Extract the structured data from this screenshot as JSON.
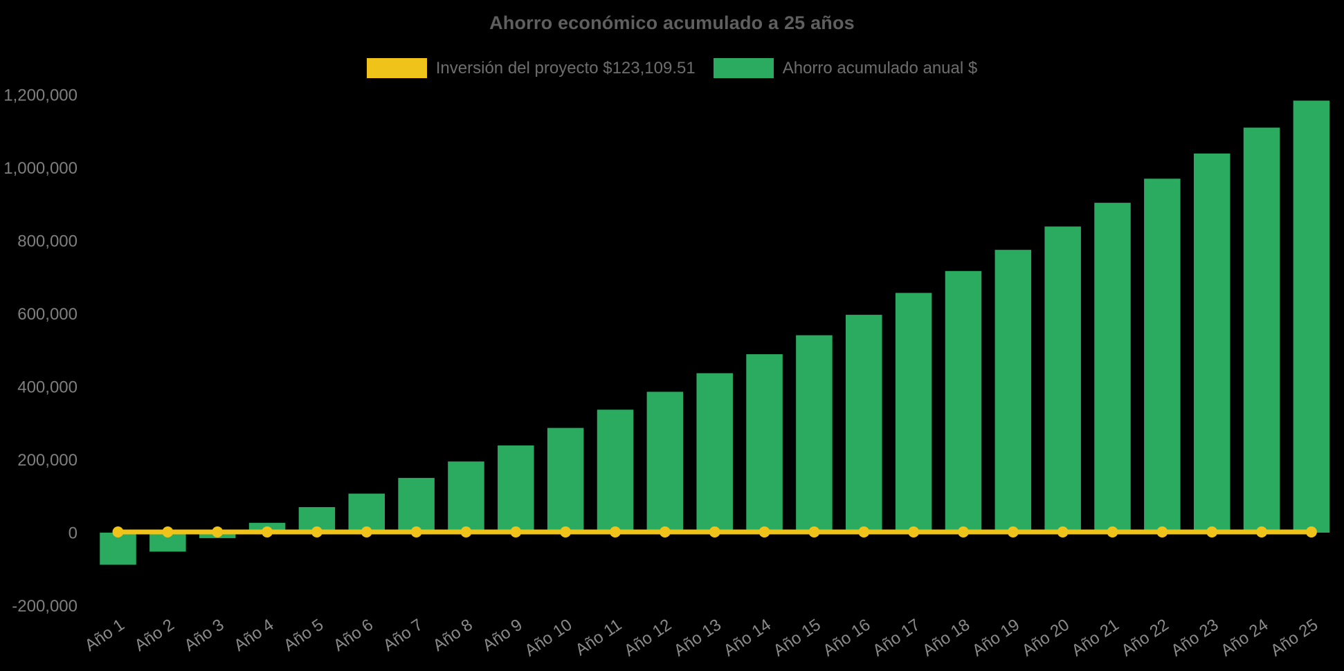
{
  "chart_data": {
    "type": "bar",
    "title": "Ahorro económico acumulado a 25 años",
    "xlabel": "",
    "ylabel": "",
    "categories": [
      "Año 1",
      "Año 2",
      "Año 3",
      "Año 4",
      "Año 5",
      "Año 6",
      "Año 7",
      "Año 8",
      "Año 9",
      "Año 10",
      "Año 11",
      "Año 12",
      "Año 13",
      "Año 14",
      "Año 15",
      "Año 16",
      "Año 17",
      "Año 18",
      "Año 19",
      "Año 20",
      "Año 21",
      "Año 22",
      "Año 23",
      "Año 24",
      "Año 25"
    ],
    "series": [
      {
        "name": "Inversión del proyecto $123,109.51",
        "type": "line",
        "color": "#efc319",
        "values": [
          0,
          0,
          0,
          0,
          0,
          0,
          0,
          0,
          0,
          0,
          0,
          0,
          0,
          0,
          0,
          0,
          0,
          0,
          0,
          0,
          0,
          0,
          0,
          0,
          0
        ]
      },
      {
        "name": "Ahorro acumulado anual $",
        "type": "bar",
        "color": "#2aab60",
        "values": [
          -88000,
          -52000,
          -15000,
          27000,
          70000,
          107000,
          150000,
          195000,
          239000,
          287000,
          337000,
          386000,
          437000,
          489000,
          541000,
          597000,
          657000,
          717000,
          775000,
          839000,
          904000,
          970000,
          1039000,
          1110000,
          1184000
        ]
      }
    ],
    "ylim": [
      -200000,
      1200000
    ],
    "ytick_step": 200000,
    "ytick_labels": [
      "-200,000",
      "0",
      "200,000",
      "400,000",
      "600,000",
      "800,000",
      "1,000,000",
      "1,200,000"
    ],
    "legend_position": "top",
    "grid": false,
    "colors": {
      "background": "#000000",
      "title_text": "#5f5f5f",
      "legend_text": "#6e6e6e",
      "ytick_text": "#7f7f7f",
      "xtick_text": "#8a8a8a",
      "investment_line": "#efc319",
      "savings_bar": "#2aab60"
    }
  }
}
